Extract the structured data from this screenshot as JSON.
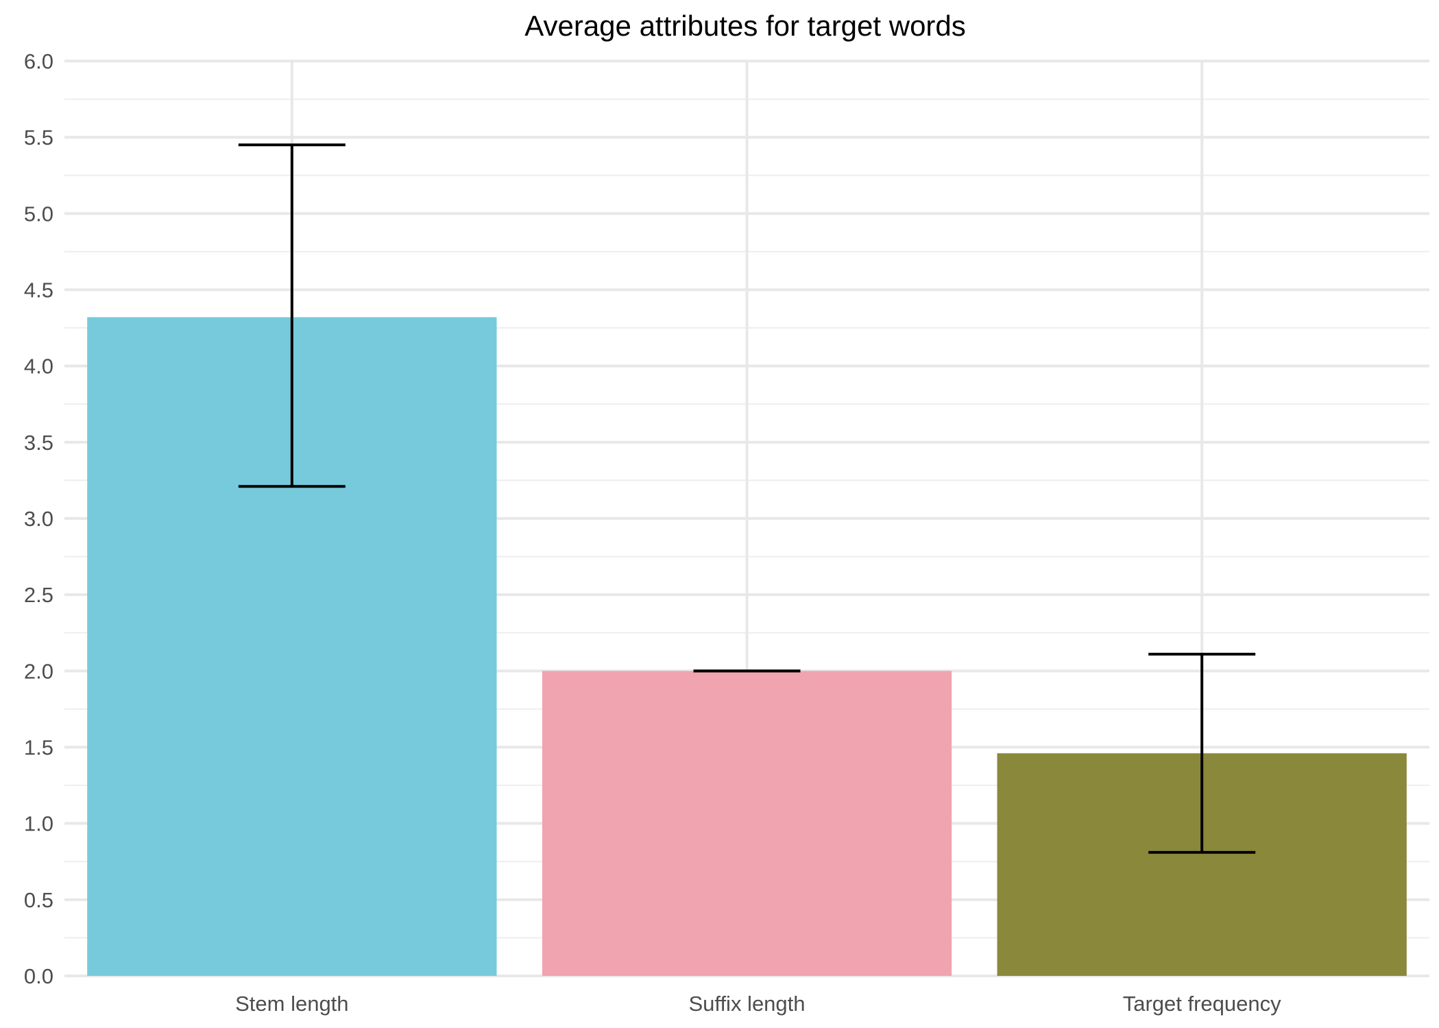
{
  "chart_data": {
    "type": "bar",
    "title": "Average attributes for target words",
    "xlabel": "",
    "ylabel": "",
    "categories": [
      "Stem length",
      "Suffix length",
      "Target frequency"
    ],
    "values": [
      4.32,
      2.0,
      1.46
    ],
    "error_low": [
      3.21,
      2.0,
      0.81
    ],
    "error_high": [
      5.45,
      2.0,
      2.11
    ],
    "colors": [
      "#76cadb",
      "#f0a4af",
      "#8a883a"
    ],
    "ylim": [
      0,
      6
    ],
    "yticks": [
      "0.0",
      "0.5",
      "1.0",
      "1.5",
      "2.0",
      "2.5",
      "3.0",
      "3.5",
      "4.0",
      "4.5",
      "5.0",
      "5.5",
      "6.0"
    ],
    "grid": true,
    "legend": "none"
  }
}
